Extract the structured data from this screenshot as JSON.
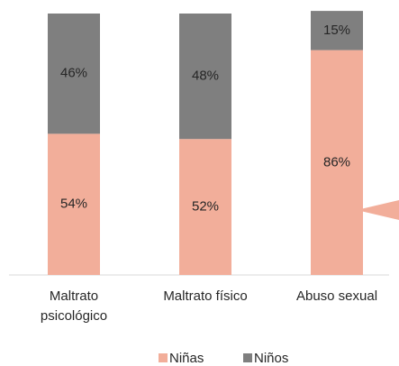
{
  "chart_data": {
    "type": "stacked_bar",
    "categories": [
      "Maltrato psicológico",
      "Maltrato físico",
      "Abuso sexual"
    ],
    "series": [
      {
        "name": "Niñas",
        "color": "#f2ae9a",
        "values": [
          54,
          52,
          86
        ],
        "value_labels": [
          "54%",
          "52%",
          "86%"
        ]
      },
      {
        "name": "Niños",
        "color": "#7f7f7f",
        "values": [
          46,
          48,
          15
        ],
        "value_labels": [
          "46%",
          "48%",
          "15%"
        ]
      }
    ],
    "ylim": [
      0,
      100
    ],
    "legend": "bottom"
  }
}
